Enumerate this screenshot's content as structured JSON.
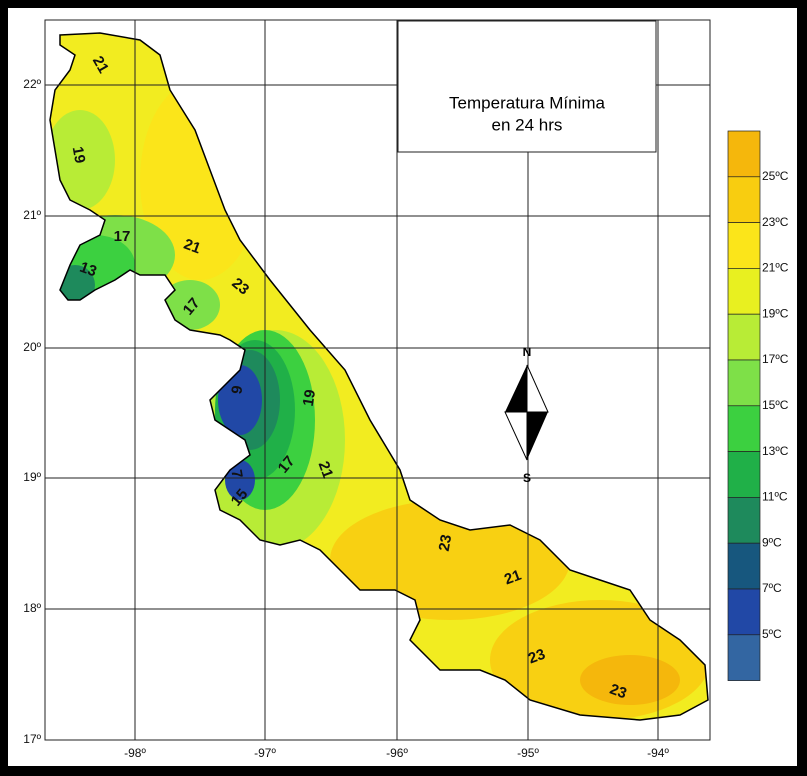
{
  "title": [
    "Temperatura Mínima",
    "en 24 hrs"
  ],
  "latitude_labels": [
    "22º",
    "21º",
    "20º",
    "19º",
    "18º",
    "17º"
  ],
  "longitude_labels": [
    "-98º",
    "-97º",
    "-96º",
    "-95º",
    "-94º"
  ],
  "compass": {
    "north": "N",
    "south": "S"
  },
  "legend": {
    "colors": [
      "#f5b70c",
      "#f8cd10",
      "#fbe51a",
      "#e8f020",
      "#b8ec36",
      "#7ee048",
      "#3cd040",
      "#20b048",
      "#1e8a5c",
      "#17577e",
      "#2148a6",
      "#3366a2"
    ],
    "labels": [
      "25ºC",
      "23ºC",
      "21ºC",
      "19ºC",
      "17ºC",
      "15ºC",
      "13ºC",
      "11ºC",
      "9ºC",
      "7ºC",
      "5ºC"
    ]
  },
  "contour_labels": [
    "21",
    "19",
    "17",
    "13",
    "21",
    "23",
    "17",
    "9",
    "19",
    "7",
    "17",
    "21",
    "15",
    "23",
    "21",
    "23",
    "23"
  ]
}
